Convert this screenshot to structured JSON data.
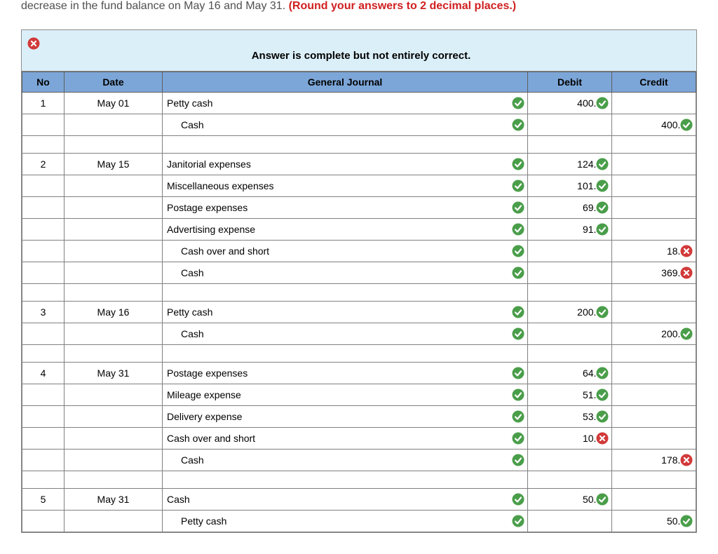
{
  "topText": {
    "left": "decrease in the fund balance on May 16 and May 31. ",
    "red": "(Round your answers to 2 decimal places.)"
  },
  "banner": {
    "icon": "cross",
    "text": "Answer is complete but not entirely correct."
  },
  "columns": {
    "no": "No",
    "date": "Date",
    "gj": "General Journal",
    "debit": "Debit",
    "credit": "Credit"
  },
  "colors": {
    "headerFill": "#7ca6d8",
    "bannerFill": "#dbeff8",
    "wrongFill": "#fce9e9",
    "checkFill": "#4a9e4a",
    "crossFill": "#d23a3a"
  },
  "rows": [
    {
      "no": "1",
      "date": "May 01",
      "account": "Petty cash",
      "indent": false,
      "acctMark": "check",
      "debit": "400.00",
      "debitMark": "check",
      "credit": "",
      "creditMark": ""
    },
    {
      "no": "",
      "date": "",
      "account": "Cash",
      "indent": true,
      "acctMark": "check",
      "debit": "",
      "debitMark": "",
      "credit": "400.00",
      "creditMark": "check"
    },
    {
      "gap": true
    },
    {
      "no": "2",
      "date": "May 15",
      "account": "Janitorial expenses",
      "indent": false,
      "acctMark": "check",
      "debit": "124.80",
      "debitMark": "check",
      "credit": "",
      "creditMark": ""
    },
    {
      "no": "",
      "date": "",
      "account": "Miscellaneous expenses",
      "indent": false,
      "acctMark": "check",
      "debit": "101.88",
      "debitMark": "check",
      "credit": "",
      "creditMark": ""
    },
    {
      "no": "",
      "date": "",
      "account": "Postage expenses",
      "indent": false,
      "acctMark": "check",
      "debit": "69.60",
      "debitMark": "check",
      "credit": "",
      "creditMark": ""
    },
    {
      "no": "",
      "date": "",
      "account": "Advertising expense",
      "indent": false,
      "acctMark": "check",
      "debit": "91.44",
      "debitMark": "check",
      "credit": "",
      "creditMark": ""
    },
    {
      "no": "",
      "date": "",
      "account": "Cash over and short",
      "indent": true,
      "acctMark": "check",
      "debit": "",
      "debitMark": "",
      "credit": "18.32",
      "creditMark": "cross",
      "creditWrong": true
    },
    {
      "no": "",
      "date": "",
      "account": "Cash",
      "indent": true,
      "acctMark": "check",
      "debit": "",
      "debitMark": "",
      "credit": "369.40",
      "creditMark": "cross",
      "creditWrong": true
    },
    {
      "gap": true
    },
    {
      "no": "3",
      "date": "May 16",
      "account": "Petty cash",
      "indent": false,
      "acctMark": "check",
      "debit": "200.00",
      "debitMark": "check",
      "credit": "",
      "creditMark": ""
    },
    {
      "no": "",
      "date": "",
      "account": "Cash",
      "indent": true,
      "acctMark": "check",
      "debit": "",
      "debitMark": "",
      "credit": "200.00",
      "creditMark": "check"
    },
    {
      "gap": true
    },
    {
      "no": "4",
      "date": "May 31",
      "account": "Postage expenses",
      "indent": false,
      "acctMark": "check",
      "debit": "64.48",
      "debitMark": "check",
      "credit": "",
      "creditMark": ""
    },
    {
      "no": "",
      "date": "",
      "account": "Mileage expense",
      "indent": false,
      "acctMark": "check",
      "debit": "51.33",
      "debitMark": "check",
      "credit": "",
      "creditMark": ""
    },
    {
      "no": "",
      "date": "",
      "account": "Delivery expense",
      "indent": false,
      "acctMark": "check",
      "debit": "53.00",
      "debitMark": "check",
      "credit": "",
      "creditMark": ""
    },
    {
      "no": "",
      "date": "",
      "account": "Cash over and short",
      "indent": false,
      "acctMark": "check",
      "debit": "10.00",
      "debitMark": "cross",
      "debitWrong": true,
      "credit": "",
      "creditMark": ""
    },
    {
      "no": "",
      "date": "",
      "account": "Cash",
      "indent": true,
      "acctMark": "check",
      "debit": "",
      "debitMark": "",
      "credit": "178.81",
      "creditMark": "cross",
      "creditWrong": true
    },
    {
      "gap": true
    },
    {
      "no": "5",
      "date": "May 31",
      "account": "Cash",
      "indent": false,
      "acctMark": "check",
      "debit": "50.00",
      "debitMark": "check",
      "credit": "",
      "creditMark": ""
    },
    {
      "no": "",
      "date": "",
      "account": "Petty cash",
      "indent": true,
      "acctMark": "check",
      "debit": "",
      "debitMark": "",
      "credit": "50.00",
      "creditMark": "check"
    }
  ]
}
